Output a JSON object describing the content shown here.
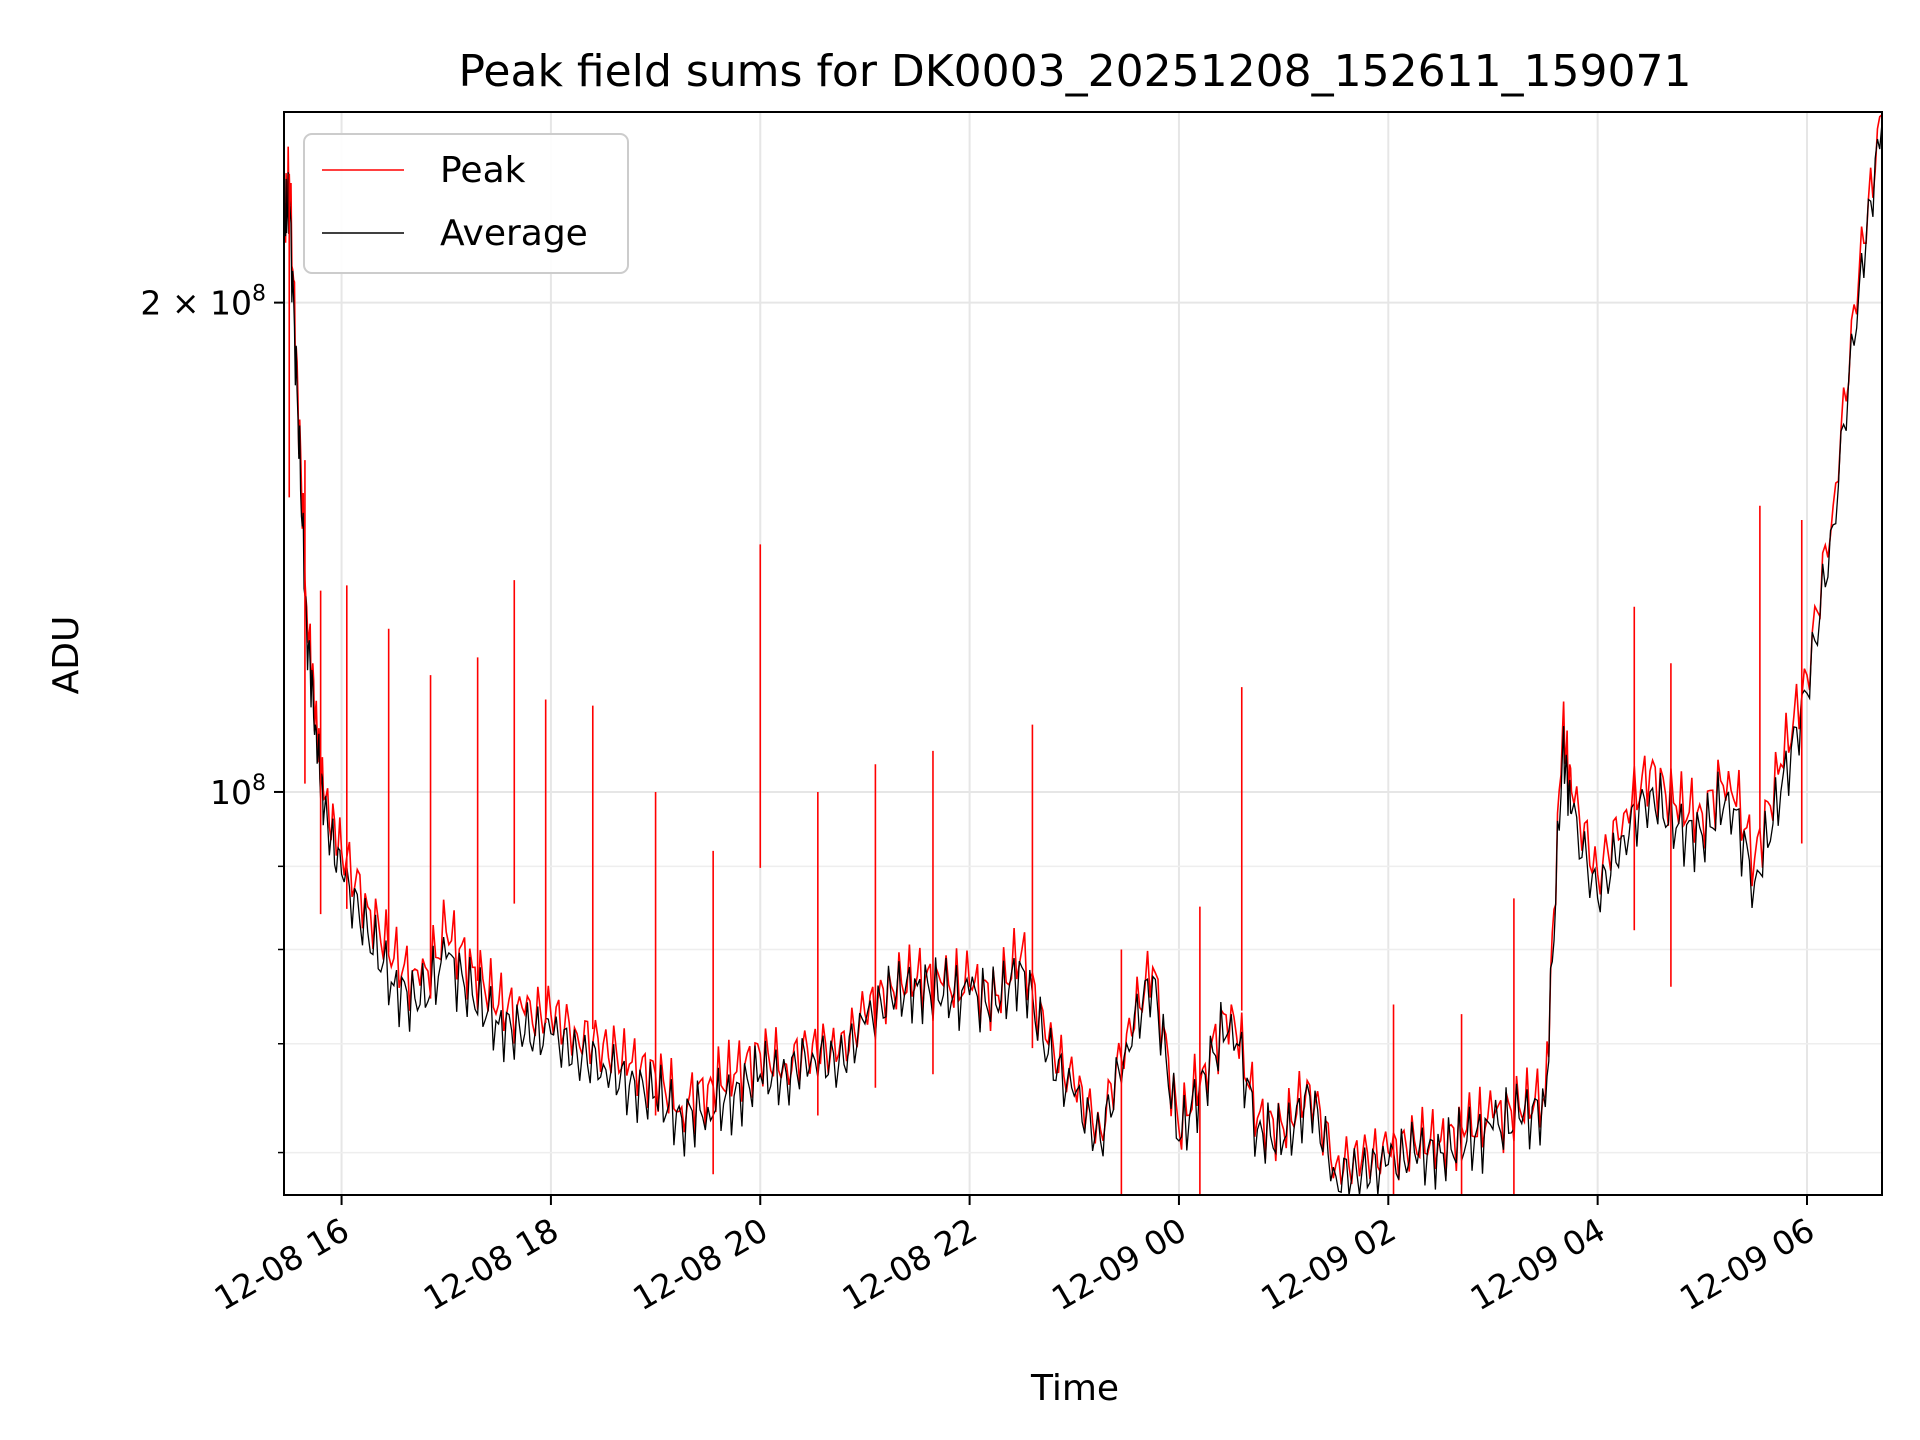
{
  "chart_data": {
    "type": "line",
    "title": "Peak field sums for DK0003_20251208_152611_159071",
    "xlabel": "Time",
    "ylabel": "ADU",
    "yscale": "log",
    "ylim": [
      56500000,
      262000000
    ],
    "xlim": [
      "2025-12-08 15:27",
      "2025-12-09 06:43"
    ],
    "grid": true,
    "legend_position": "upper-left",
    "x_ticks": [
      {
        "label": "12-08 16",
        "value": "2025-12-08 16:00"
      },
      {
        "label": "12-08 18",
        "value": "2025-12-08 18:00"
      },
      {
        "label": "12-08 20",
        "value": "2025-12-08 20:00"
      },
      {
        "label": "12-08 22",
        "value": "2025-12-08 22:00"
      },
      {
        "label": "12-09 00",
        "value": "2025-12-09 00:00"
      },
      {
        "label": "12-09 02",
        "value": "2025-12-09 02:00"
      },
      {
        "label": "12-09 04",
        "value": "2025-12-09 04:00"
      },
      {
        "label": "12-09 06",
        "value": "2025-12-09 06:00"
      }
    ],
    "y_major_ticks": [
      {
        "label": "10",
        "exponent": "8",
        "value": 100000000
      },
      {
        "label": "2 × 10",
        "exponent": "8",
        "value": 200000000
      }
    ],
    "y_minor_ticks": [
      60000000,
      70000000,
      80000000,
      90000000
    ],
    "series": [
      {
        "name": "Peak",
        "color": "#ff0000",
        "x": [
          "2025-12-08 15:27",
          "2025-12-08 15:30",
          "2025-12-08 15:35",
          "2025-12-08 15:40",
          "2025-12-08 15:45",
          "2025-12-08 15:50",
          "2025-12-08 16:00",
          "2025-12-08 16:15",
          "2025-12-08 16:30",
          "2025-12-08 16:45",
          "2025-12-08 17:00",
          "2025-12-08 17:15",
          "2025-12-08 17:30",
          "2025-12-08 17:45",
          "2025-12-08 18:00",
          "2025-12-08 18:15",
          "2025-12-08 18:30",
          "2025-12-08 18:45",
          "2025-12-08 19:00",
          "2025-12-08 19:15",
          "2025-12-08 19:30",
          "2025-12-08 19:45",
          "2025-12-08 20:00",
          "2025-12-08 20:15",
          "2025-12-08 20:30",
          "2025-12-08 20:45",
          "2025-12-08 21:00",
          "2025-12-08 21:15",
          "2025-12-08 21:30",
          "2025-12-08 21:45",
          "2025-12-08 22:00",
          "2025-12-08 22:15",
          "2025-12-08 22:30",
          "2025-12-08 22:45",
          "2025-12-08 23:00",
          "2025-12-08 23:15",
          "2025-12-08 23:30",
          "2025-12-08 23:45",
          "2025-12-09 00:00",
          "2025-12-09 00:15",
          "2025-12-09 00:30",
          "2025-12-09 00:45",
          "2025-12-09 01:00",
          "2025-12-09 01:15",
          "2025-12-09 01:30",
          "2025-12-09 01:45",
          "2025-12-09 02:00",
          "2025-12-09 02:15",
          "2025-12-09 02:30",
          "2025-12-09 02:45",
          "2025-12-09 03:00",
          "2025-12-09 03:15",
          "2025-12-09 03:30",
          "2025-12-09 03:40",
          "2025-12-09 03:45",
          "2025-12-09 04:00",
          "2025-12-09 04:15",
          "2025-12-09 04:30",
          "2025-12-09 04:45",
          "2025-12-09 05:00",
          "2025-12-09 05:15",
          "2025-12-09 05:30",
          "2025-12-09 05:45",
          "2025-12-09 06:00",
          "2025-12-09 06:15",
          "2025-12-09 06:30",
          "2025-12-09 06:43"
        ],
        "values": [
          225000000,
          240000000,
          175000000,
          130000000,
          112000000,
          99000000,
          92000000,
          85000000,
          79000000,
          76000000,
          82000000,
          78000000,
          74000000,
          73000000,
          73000000,
          71000000,
          70000000,
          68000000,
          67000000,
          64000000,
          66000000,
          67000000,
          69000000,
          68000000,
          70000000,
          69000000,
          73000000,
          76000000,
          77000000,
          76000000,
          76000000,
          75000000,
          80000000,
          70000000,
          66000000,
          62000000,
          71000000,
          78000000,
          62000000,
          68000000,
          74000000,
          63000000,
          62000000,
          66000000,
          59000000,
          59500000,
          60000000,
          61000000,
          61000000,
          62000000,
          63000000,
          64000000,
          65000000,
          110000000,
          100000000,
          89000000,
          97000000,
          103000000,
          98000000,
          97000000,
          103000000,
          91000000,
          104000000,
          118000000,
          150000000,
          210000000,
          261000000
        ]
      },
      {
        "name": "Average",
        "color": "#000000",
        "x": [
          "2025-12-08 15:27",
          "2025-12-08 15:30",
          "2025-12-08 15:35",
          "2025-12-08 15:40",
          "2025-12-08 15:45",
          "2025-12-08 15:50",
          "2025-12-08 16:00",
          "2025-12-08 16:15",
          "2025-12-08 16:30",
          "2025-12-08 16:45",
          "2025-12-08 17:00",
          "2025-12-08 17:15",
          "2025-12-08 17:30",
          "2025-12-08 17:45",
          "2025-12-08 18:00",
          "2025-12-08 18:15",
          "2025-12-08 18:30",
          "2025-12-08 18:45",
          "2025-12-08 19:00",
          "2025-12-08 19:15",
          "2025-12-08 19:30",
          "2025-12-08 19:45",
          "2025-12-08 20:00",
          "2025-12-08 20:15",
          "2025-12-08 20:30",
          "2025-12-08 20:45",
          "2025-12-08 21:00",
          "2025-12-08 21:15",
          "2025-12-08 21:30",
          "2025-12-08 21:45",
          "2025-12-08 22:00",
          "2025-12-08 22:15",
          "2025-12-08 22:30",
          "2025-12-08 22:45",
          "2025-12-08 23:00",
          "2025-12-08 23:15",
          "2025-12-08 23:30",
          "2025-12-08 23:45",
          "2025-12-09 00:00",
          "2025-12-09 00:15",
          "2025-12-09 00:30",
          "2025-12-09 00:45",
          "2025-12-09 01:00",
          "2025-12-09 01:15",
          "2025-12-09 01:30",
          "2025-12-09 01:45",
          "2025-12-09 02:00",
          "2025-12-09 02:15",
          "2025-12-09 02:30",
          "2025-12-09 02:45",
          "2025-12-09 03:00",
          "2025-12-09 03:15",
          "2025-12-09 03:30",
          "2025-12-09 03:40",
          "2025-12-09 03:45",
          "2025-12-09 04:00",
          "2025-12-09 04:15",
          "2025-12-09 04:30",
          "2025-12-09 04:45",
          "2025-12-09 05:00",
          "2025-12-09 05:15",
          "2025-12-09 05:30",
          "2025-12-09 05:45",
          "2025-12-09 06:00",
          "2025-12-09 06:15",
          "2025-12-09 06:30",
          "2025-12-09 06:43"
        ],
        "values": [
          222000000,
          232000000,
          170000000,
          126000000,
          110000000,
          97000000,
          89000000,
          82000000,
          76000000,
          74000000,
          79000000,
          75000000,
          72000000,
          71000000,
          71000000,
          69000000,
          68000000,
          66000000,
          65000000,
          63000000,
          64000000,
          65000000,
          67000000,
          67000000,
          69000000,
          68000000,
          72000000,
          75000000,
          76000000,
          75000000,
          75000000,
          74000000,
          78000000,
          69000000,
          65000000,
          61000000,
          70000000,
          77000000,
          61000000,
          67000000,
          73000000,
          62000000,
          61000000,
          65000000,
          58000000,
          58500000,
          59000000,
          60000000,
          60000000,
          61000000,
          62000000,
          63000000,
          64000000,
          107000000,
          97000000,
          86000000,
          94000000,
          100000000,
          95000000,
          94000000,
          100000000,
          88000000,
          100000000,
          115000000,
          146000000,
          205000000,
          258000000
        ]
      }
    ],
    "notable_spikes": [
      {
        "x": "2025-12-08 15:30",
        "value": 240000000
      },
      {
        "x": "2025-12-08 15:39",
        "value": 160000000
      },
      {
        "x": "2025-12-08 15:48",
        "value": 133000000
      },
      {
        "x": "2025-12-08 16:03",
        "value": 134000000
      },
      {
        "x": "2025-12-08 16:27",
        "value": 126000000
      },
      {
        "x": "2025-12-08 16:51",
        "value": 118000000
      },
      {
        "x": "2025-12-08 17:18",
        "value": 121000000
      },
      {
        "x": "2025-12-08 17:39",
        "value": 135000000
      },
      {
        "x": "2025-12-08 17:57",
        "value": 114000000
      },
      {
        "x": "2025-12-08 18:24",
        "value": 113000000
      },
      {
        "x": "2025-12-08 19:00",
        "value": 100000000
      },
      {
        "x": "2025-12-08 19:33",
        "value": 92000000
      },
      {
        "x": "2025-12-08 20:00",
        "value": 142000000
      },
      {
        "x": "2025-12-08 20:33",
        "value": 100000000
      },
      {
        "x": "2025-12-08 21:06",
        "value": 104000000
      },
      {
        "x": "2025-12-08 21:39",
        "value": 106000000
      },
      {
        "x": "2025-12-08 22:36",
        "value": 110000000
      },
      {
        "x": "2025-12-08 23:27",
        "value": 80000000
      },
      {
        "x": "2025-12-09 00:12",
        "value": 85000000
      },
      {
        "x": "2025-12-09 00:36",
        "value": 116000000
      },
      {
        "x": "2025-12-09 02:03",
        "value": 74000000
      },
      {
        "x": "2025-12-09 02:42",
        "value": 73000000
      },
      {
        "x": "2025-12-09 03:12",
        "value": 86000000
      },
      {
        "x": "2025-12-09 04:21",
        "value": 130000000
      },
      {
        "x": "2025-12-09 04:42",
        "value": 120000000
      },
      {
        "x": "2025-12-09 05:33",
        "value": 150000000
      },
      {
        "x": "2025-12-09 05:57",
        "value": 147000000
      }
    ]
  }
}
